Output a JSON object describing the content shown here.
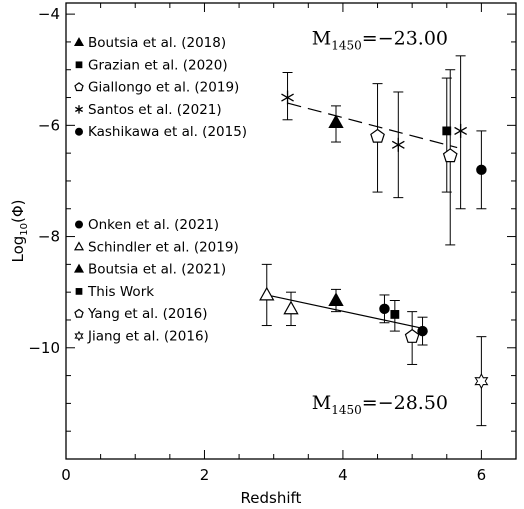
{
  "chart_data": {
    "type": "scatter",
    "xlabel": "Redshift",
    "ylabel_main": "Log",
    "ylabel_sub": "10",
    "ylabel_tail": "(Φ)",
    "xlim": [
      0,
      6.5
    ],
    "ylim": [
      -12,
      -3.8
    ],
    "xticks": [
      0,
      2,
      4,
      6
    ],
    "yticks": [
      -10,
      -8,
      -6,
      -4
    ],
    "xtick_labels": [
      "0",
      "2",
      "4",
      "6"
    ],
    "ytick_labels": [
      "−10",
      "−8",
      "−6",
      "−4"
    ],
    "annotations": [
      {
        "main": "M",
        "sub": "1450",
        "rest": "=−23.00",
        "x": 3.55,
        "y": -4.55
      },
      {
        "main": "M",
        "sub": "1450",
        "rest": "=−28.50",
        "x": 3.55,
        "y": -11.1
      }
    ],
    "fits": [
      {
        "style": "dashed",
        "x": [
          3.2,
          5.65
        ],
        "y": [
          -5.6,
          -6.4
        ]
      },
      {
        "style": "solid",
        "x": [
          2.9,
          5.15
        ],
        "y": [
          -9.05,
          -9.65
        ]
      }
    ],
    "legend_groups": [
      {
        "entries": [
          {
            "label": "Boutsia et al. (2018)",
            "marker": "triangle-filled"
          },
          {
            "label": "Grazian et al. (2020)",
            "marker": "square-filled"
          },
          {
            "label": "Giallongo et al. (2019)",
            "marker": "pentagon-open"
          },
          {
            "label": "Santos et al. (2021)",
            "marker": "asterisk"
          },
          {
            "label": "Kashikawa et al. (2015)",
            "marker": "circle-filled"
          }
        ]
      },
      {
        "entries": [
          {
            "label": "Onken et al. (2021)",
            "marker": "circle-filled"
          },
          {
            "label": "Schindler et al. (2019)",
            "marker": "triangle-open"
          },
          {
            "label": "Boutsia et al. (2021)",
            "marker": "triangle-filled"
          },
          {
            "label": "This Work",
            "marker": "square-filled"
          },
          {
            "label": "Yang et al. (2016)",
            "marker": "pentagon-open"
          },
          {
            "label": "Jiang et al. (2016)",
            "marker": "star-open"
          }
        ]
      }
    ],
    "series": [
      {
        "name": "Boutsia et al. (2018)",
        "marker": "triangle-filled",
        "points": [
          {
            "x": 3.9,
            "y": -5.95,
            "ylo": -6.3,
            "yhi": -5.65
          }
        ]
      },
      {
        "name": "Grazian et al. (2020)",
        "marker": "square-filled",
        "points": [
          {
            "x": 5.5,
            "y": -6.1,
            "ylo": -7.2,
            "yhi": -5.15
          }
        ]
      },
      {
        "name": "Giallongo et al. (2019)",
        "marker": "pentagon-open",
        "points": [
          {
            "x": 4.5,
            "y": -6.2,
            "ylo": -7.2,
            "yhi": -5.25
          },
          {
            "x": 5.55,
            "y": -6.55,
            "ylo": -8.15,
            "yhi": -5.0
          }
        ]
      },
      {
        "name": "Santos et al. (2021)",
        "marker": "asterisk",
        "points": [
          {
            "x": 3.2,
            "y": -5.5,
            "ylo": -5.9,
            "yhi": -5.05
          },
          {
            "x": 4.8,
            "y": -6.35,
            "ylo": -7.3,
            "yhi": -5.4
          },
          {
            "x": 5.7,
            "y": -6.1,
            "ylo": -7.5,
            "yhi": -4.75
          }
        ]
      },
      {
        "name": "Kashikawa et al. (2015)",
        "marker": "circle-filled",
        "points": [
          {
            "x": 6.0,
            "y": -6.8,
            "ylo": -7.5,
            "yhi": -6.1
          }
        ]
      },
      {
        "name": "Onken et al. (2021)",
        "marker": "circle-filled",
        "points": [
          {
            "x": 4.6,
            "y": -9.3,
            "ylo": -9.55,
            "yhi": -9.05
          },
          {
            "x": 5.15,
            "y": -9.7,
            "ylo": -9.95,
            "yhi": -9.45
          }
        ]
      },
      {
        "name": "Schindler et al. (2019)",
        "marker": "triangle-open",
        "points": [
          {
            "x": 2.9,
            "y": -9.05,
            "ylo": -9.6,
            "yhi": -8.5
          },
          {
            "x": 3.25,
            "y": -9.3,
            "ylo": -9.6,
            "yhi": -9.0
          }
        ]
      },
      {
        "name": "Boutsia et al. (2021)",
        "marker": "triangle-filled",
        "points": [
          {
            "x": 3.9,
            "y": -9.15,
            "ylo": -9.35,
            "yhi": -8.95
          }
        ]
      },
      {
        "name": "This Work",
        "marker": "square-filled",
        "points": [
          {
            "x": 4.75,
            "y": -9.4,
            "ylo": -9.7,
            "yhi": -9.15
          }
        ]
      },
      {
        "name": "Yang et al. (2016)",
        "marker": "pentagon-open",
        "points": [
          {
            "x": 5.0,
            "y": -9.8,
            "ylo": -10.3,
            "yhi": -9.35
          }
        ]
      },
      {
        "name": "Jiang et al. (2016)",
        "marker": "star-open",
        "points": [
          {
            "x": 6.0,
            "y": -10.6,
            "ylo": -11.4,
            "yhi": -9.8
          }
        ]
      }
    ]
  }
}
